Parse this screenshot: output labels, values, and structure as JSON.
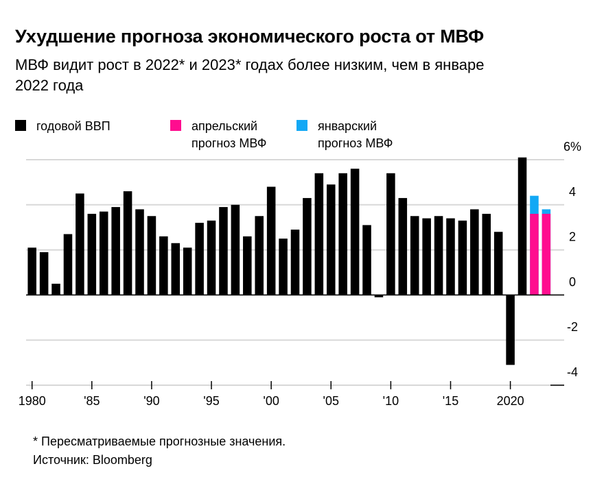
{
  "header": {
    "title": "Ухудшение прогноза экономического роста от МВФ",
    "subtitle": "МВФ видит рост в 2022* и 2023* годах более низким, чем в январе 2022 года"
  },
  "legend": [
    {
      "label": "годовой ВВП",
      "color": "#000000"
    },
    {
      "label": "апрельский\nпрогноз МВФ",
      "color": "#ff0d8f"
    },
    {
      "label": "январский\nпрогноз МВФ",
      "color": "#12a8f5"
    }
  ],
  "chart_data": {
    "type": "bar",
    "title": "Ухудшение прогноза экономического роста от МВФ",
    "ylabel": "",
    "ylim": [
      -4,
      6
    ],
    "yticks": [
      6,
      4,
      2,
      0,
      -2,
      -4
    ],
    "ytick_labels": [
      "6%",
      "4",
      "2",
      "0",
      "-2",
      "-4"
    ],
    "xlim": [
      1979.5,
      2024.5
    ],
    "xtick_values": [
      1980,
      1985,
      1990,
      1995,
      2000,
      2005,
      2010,
      2015,
      2020
    ],
    "xtick_labels": [
      "1980",
      "'85",
      "'90",
      "'95",
      "'00",
      "'05",
      "'10",
      "'15",
      "2020"
    ],
    "grid": true,
    "legend_position": "top",
    "series": [
      {
        "name": "годовой ВВП",
        "color": "#000000",
        "x": [
          1980,
          1981,
          1982,
          1983,
          1984,
          1985,
          1986,
          1987,
          1988,
          1989,
          1990,
          1991,
          1992,
          1993,
          1994,
          1995,
          1996,
          1997,
          1998,
          1999,
          2000,
          2001,
          2002,
          2003,
          2004,
          2005,
          2006,
          2007,
          2008,
          2009,
          2010,
          2011,
          2012,
          2013,
          2014,
          2015,
          2016,
          2017,
          2018,
          2019,
          2020,
          2021
        ],
        "values": [
          2.1,
          1.9,
          0.5,
          2.7,
          4.5,
          3.6,
          3.7,
          3.9,
          4.6,
          3.8,
          3.5,
          2.6,
          2.3,
          2.1,
          3.2,
          3.3,
          3.9,
          4.0,
          2.6,
          3.5,
          4.8,
          2.5,
          2.9,
          4.3,
          5.4,
          4.9,
          5.4,
          5.6,
          3.1,
          -0.1,
          5.4,
          4.3,
          3.5,
          3.4,
          3.5,
          3.4,
          3.3,
          3.8,
          3.6,
          2.8,
          -3.1,
          6.1
        ]
      },
      {
        "name": "апрельский прогноз МВФ",
        "color": "#ff0d8f",
        "x": [
          2022,
          2023
        ],
        "values": [
          3.6,
          3.6
        ]
      },
      {
        "name": "январский прогноз МВФ",
        "color": "#12a8f5",
        "x": [
          2022,
          2023
        ],
        "values": [
          4.4,
          3.8
        ]
      }
    ]
  },
  "footnote": {
    "note": "* Пересматриваемые прогнозные значения.",
    "source": "Источник: Bloomberg"
  }
}
